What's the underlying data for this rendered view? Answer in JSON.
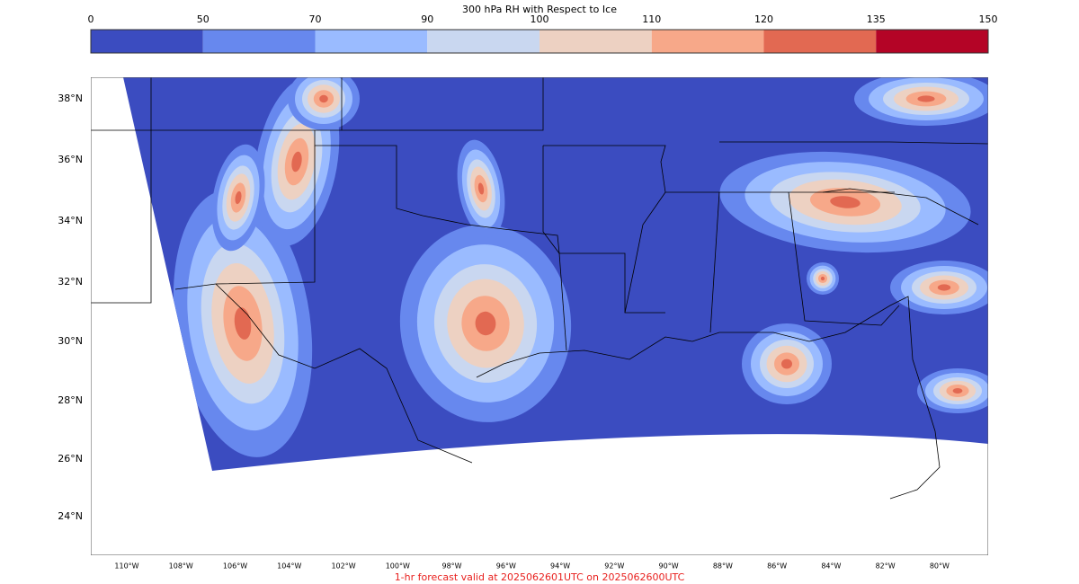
{
  "title": "300 hPa RH with Respect to Ice",
  "colorbar": {
    "ticks": [
      "0",
      "50",
      "70",
      "90",
      "100",
      "110",
      "120",
      "135",
      "150"
    ],
    "colors": [
      "#3b4cc0",
      "#6788ee",
      "#9abbff",
      "#c9d7f0",
      "#edd1c2",
      "#f7a889",
      "#e26952",
      "#b40426"
    ]
  },
  "map": {
    "lat_labels": [
      "38°N",
      "36°N",
      "34°N",
      "32°N",
      "30°N",
      "28°N",
      "26°N",
      "24°N"
    ],
    "lon_labels": [
      "110°W",
      "108°W",
      "106°W",
      "104°W",
      "102°W",
      "100°W",
      "98°W",
      "96°W",
      "94°W",
      "92°W",
      "90°W",
      "88°W",
      "86°W",
      "84°W",
      "82°W",
      "80°W"
    ]
  },
  "footer": "1-hr forecast valid at 2025062601UTC on 2025062600UTC"
}
